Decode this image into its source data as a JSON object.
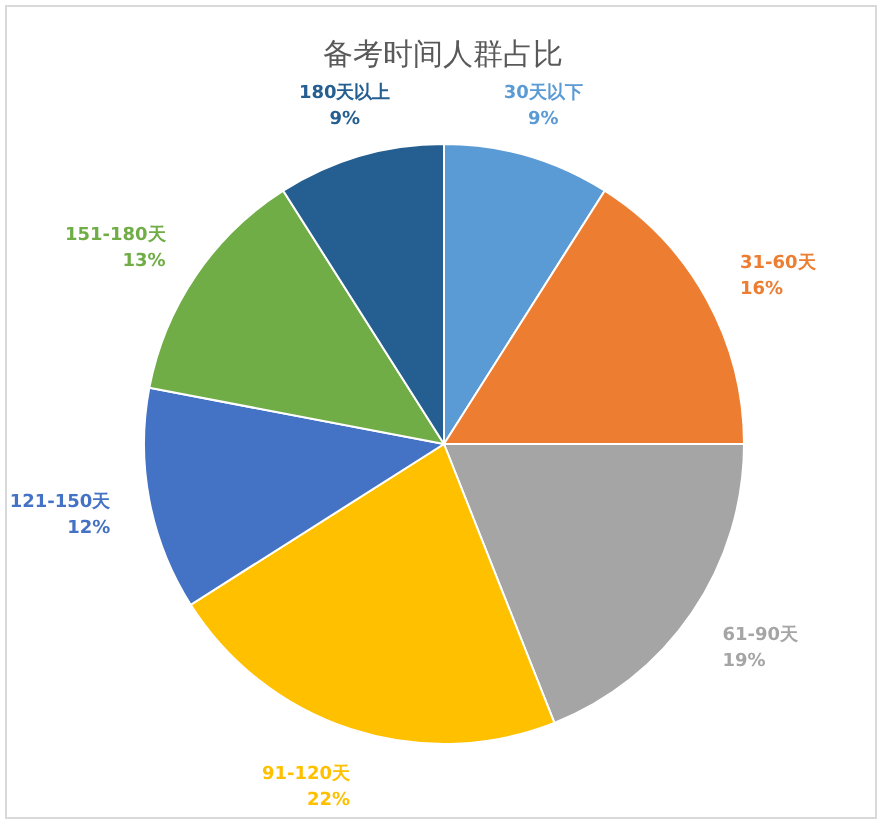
{
  "chart_data": {
    "type": "pie",
    "title": "备考时间人群占比",
    "categories": [
      "30天以下",
      "31-60天",
      "61-90天",
      "91-120天",
      "121-150天",
      "151-180天",
      "180天以上"
    ],
    "values": [
      9,
      16,
      19,
      22,
      12,
      13,
      9
    ],
    "colors": [
      "#5b9bd5",
      "#ed7d31",
      "#a5a5a5",
      "#ffc000",
      "#4472c4",
      "#70ad47",
      "#255e91"
    ],
    "value_labels": [
      "9%",
      "16%",
      "19%",
      "22%",
      "12%",
      "13%",
      "9%"
    ]
  }
}
